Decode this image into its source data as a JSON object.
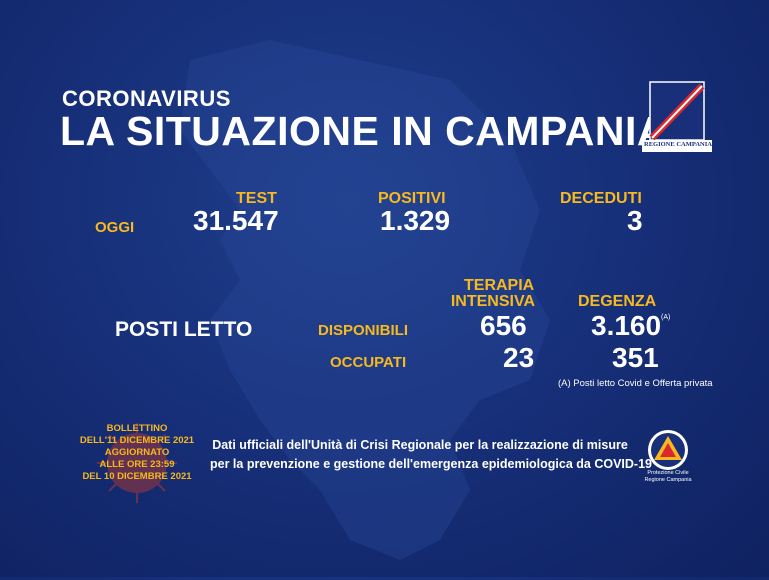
{
  "header": {
    "subtitle": "CORONAVIRUS",
    "title": "LA SITUAZIONE IN CAMPANIA"
  },
  "logo": {
    "label": "REGIONE CAMPANIA",
    "icon": "regione-campania-crest"
  },
  "today": {
    "row_label": "OGGI",
    "test_label": "TEST",
    "test_value": "31.547",
    "positive_label": "POSITIVI",
    "positive_value": "1.329",
    "deaths_label": "DECEDUTI",
    "deaths_value": "3"
  },
  "beds": {
    "section_label": "POSTI LETTO",
    "icu_label_line1": "TERAPIA",
    "icu_label_line2": "INTENSIVA",
    "ward_label": "DEGENZA",
    "available_label": "DISPONIBILI",
    "occupied_label": "OCCUPATI",
    "icu_available": "656",
    "ward_available": "3.160",
    "ward_available_mark": "(A)",
    "icu_occupied": "23",
    "ward_occupied": "351",
    "note": "(A) Posti letto Covid e Offerta privata"
  },
  "bulletin": {
    "line1": "BOLLETTINO",
    "line2": "DELL'11 DICEMBRE 2021",
    "line3": "AGGIORNATO",
    "line4": "ALLE ORE 23:59",
    "line5": "DEL 10 DICEMBRE 2021"
  },
  "footer": {
    "line1": "Dati ufficiali dell'Unità di Crisi Regionale per la realizzazione di misure",
    "line2": "per la prevenzione e gestione dell'emergenza epidemiologica da COVID-19"
  },
  "protezione": {
    "line1": "Protezione Civile",
    "line2": "Regione Campania",
    "icon": "protezione-civile-logo"
  },
  "colors": {
    "background": "#17307a",
    "accent": "#f7b91d",
    "text": "#ffffff"
  }
}
